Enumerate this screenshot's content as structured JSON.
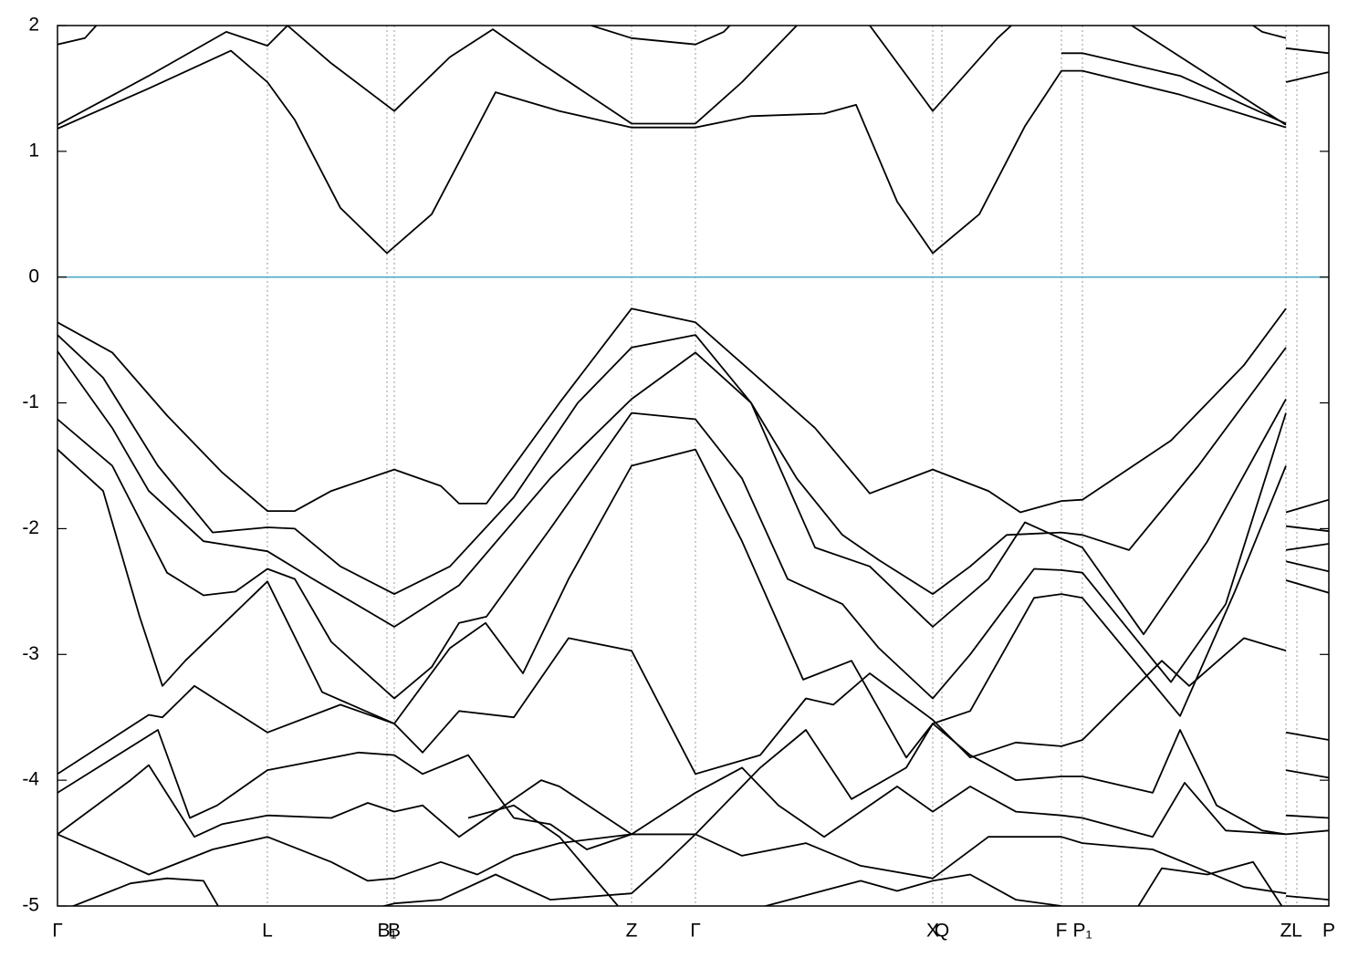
{
  "chart_data": {
    "type": "line",
    "xlim": [
      0,
      13.93
    ],
    "ylim": [
      -5,
      2
    ],
    "yticks": [
      -5,
      -4,
      -3,
      -2,
      -1,
      0,
      1,
      2
    ],
    "xticks": [
      {
        "value": 0,
        "label": "Γ"
      },
      {
        "value": 2.3,
        "label": "L"
      },
      {
        "value": 3.61,
        "label": "B₁"
      },
      {
        "value": 3.69,
        "label": "B"
      },
      {
        "value": 6.29,
        "label": "Z"
      },
      {
        "value": 6.99,
        "label": "Γ"
      },
      {
        "value": 9.59,
        "label": "X"
      },
      {
        "value": 9.69,
        "label": "Q"
      },
      {
        "value": 11.0,
        "label": "F"
      },
      {
        "value": 11.23,
        "label": "P₁"
      },
      {
        "value": 13.46,
        "label": "Z"
      },
      {
        "value": 13.58,
        "label": "L"
      },
      {
        "value": 13.93,
        "label": "P"
      }
    ],
    "xgrid": true,
    "hline": {
      "value": 0,
      "color": "#4eaac6"
    },
    "series": [
      {
        "color": "#000000",
        "x": [
          0,
          1.0,
          1.9,
          2.3,
          2.6,
          3.1,
          3.61,
          4.1,
          4.8,
          5.5,
          6.29,
          6.99,
          7.6,
          8.4,
          8.75,
          9.2,
          9.59,
          10.1,
          10.6,
          11.0,
          11.23,
          12.3,
          13.46
        ],
        "values": [
          1.18,
          1.5,
          1.8,
          1.55,
          1.25,
          0.55,
          0.19,
          0.5,
          1.47,
          1.32,
          1.19,
          1.19,
          1.28,
          1.3,
          1.37,
          0.6,
          0.19,
          0.5,
          1.2,
          1.64,
          1.64,
          1.45,
          1.19
        ]
      },
      {
        "color": "#000000",
        "x": [
          0,
          1.0,
          1.85,
          2.3,
          2.52,
          3.0,
          3.69,
          4.3,
          4.77,
          5.3,
          6.29,
          6.99,
          7.5,
          8.1,
          8.5,
          8.9,
          9.59,
          10.3,
          10.6,
          11.0,
          11.5,
          11.77,
          13.46
        ],
        "values": [
          1.21,
          1.6,
          1.95,
          1.84,
          2.0,
          1.7,
          1.32,
          1.75,
          1.97,
          1.7,
          1.22,
          1.22,
          1.55,
          2.0,
          2.2,
          2.0,
          1.32,
          1.9,
          2.1,
          2.2,
          2.15,
          2.0,
          1.21
        ]
      },
      {
        "color": "#000000",
        "x": [
          11.0,
          11.23,
          12.3,
          13.46
        ],
        "values": [
          1.78,
          1.78,
          1.6,
          1.22
        ]
      },
      {
        "color": "#000000",
        "x": [
          0,
          0.3,
          0.55,
          3.0,
          5.6,
          5.85,
          6.29,
          6.99,
          7.3,
          7.5,
          10,
          12.9,
          13.2,
          13.46
        ],
        "values": [
          1.85,
          1.9,
          2.1,
          null,
          2.1,
          2.0,
          1.9,
          1.85,
          1.95,
          2.1,
          null,
          2.1,
          1.95,
          1.9
        ]
      },
      {
        "color": "#000000",
        "x": [
          0,
          0.6,
          1.2,
          1.8,
          2.3,
          2.6,
          3.0,
          3.69,
          4.2,
          4.4,
          4.7,
          5.5,
          6.29,
          6.99,
          7.6,
          8.3,
          8.9,
          9.59,
          10.2,
          10.55,
          11.0,
          11.23,
          12.2,
          13.0,
          13.46
        ],
        "values": [
          -0.36,
          -0.6,
          -1.1,
          -1.55,
          -1.86,
          -1.86,
          -1.7,
          -1.53,
          -1.66,
          -1.8,
          -1.8,
          -1.0,
          -0.25,
          -0.36,
          -0.75,
          -1.2,
          -1.72,
          -1.53,
          -1.7,
          -1.87,
          -1.78,
          -1.77,
          -1.3,
          -0.7,
          -0.25
        ]
      },
      {
        "color": "#000000",
        "x": [
          0,
          0.5,
          1.1,
          1.7,
          2.3,
          2.6,
          3.1,
          3.69,
          4.3,
          5.0,
          5.7,
          6.29,
          6.99,
          7.6,
          8.1,
          8.6,
          9.0,
          9.59,
          10.0,
          10.4,
          11.0,
          11.23,
          11.74,
          12.5,
          13.46
        ],
        "values": [
          -0.46,
          -0.8,
          -1.5,
          -2.03,
          -1.99,
          -2.0,
          -2.3,
          -2.52,
          -2.3,
          -1.75,
          -1.0,
          -0.56,
          -0.46,
          -1.0,
          -1.6,
          -2.05,
          -2.25,
          -2.52,
          -2.3,
          -2.05,
          -2.03,
          -2.05,
          -2.17,
          -1.5,
          -0.56
        ]
      },
      {
        "color": "#000000",
        "x": [
          0,
          0.6,
          1.0,
          1.6,
          2.3,
          2.8,
          3.69,
          4.4,
          5.4,
          6.29,
          6.99,
          7.6,
          8.3,
          8.9,
          9.59,
          10.2,
          10.6,
          11.0,
          11.23,
          11.9,
          12.6,
          13.46
        ],
        "values": [
          -0.59,
          -1.2,
          -1.7,
          -2.1,
          -2.18,
          -2.4,
          -2.78,
          -2.45,
          -1.6,
          -0.97,
          -0.6,
          -1.0,
          -2.15,
          -2.3,
          -2.78,
          -2.4,
          -1.95,
          -2.08,
          -2.15,
          -2.84,
          -2.1,
          -0.97
        ]
      },
      {
        "color": "#000000",
        "x": [
          0,
          0.6,
          1.2,
          1.6,
          1.95,
          2.3,
          2.6,
          3.0,
          3.69,
          4.1,
          4.4,
          4.7,
          5.4,
          6.29,
          6.99,
          7.5,
          8.0,
          8.6,
          9.0,
          9.59,
          10.0,
          10.7,
          11.0,
          11.23,
          12.2,
          12.8,
          13.46
        ],
        "values": [
          -1.13,
          -1.5,
          -2.35,
          -2.53,
          -2.5,
          -2.32,
          -2.4,
          -2.9,
          -3.35,
          -3.1,
          -2.75,
          -2.7,
          -2.0,
          -1.08,
          -1.13,
          -1.6,
          -2.4,
          -2.6,
          -2.95,
          -3.35,
          -3.0,
          -2.32,
          -2.33,
          -2.35,
          -3.22,
          -2.6,
          -1.08
        ]
      },
      {
        "color": "#000000",
        "x": [
          0,
          0.5,
          0.9,
          1.15,
          1.4,
          2.3,
          2.9,
          3.69,
          4.3,
          4.69,
          5.1,
          5.6,
          6.29,
          6.99,
          7.5,
          8.17,
          8.7,
          9.3,
          9.59,
          10.0,
          10.7,
          11.0,
          11.23,
          12.3,
          12.9,
          13.46
        ],
        "values": [
          -1.37,
          -1.7,
          -2.7,
          -3.25,
          -3.05,
          -2.42,
          -3.3,
          -3.55,
          -2.95,
          -2.75,
          -3.15,
          -2.4,
          -1.5,
          -1.37,
          -2.1,
          -3.2,
          -3.05,
          -3.82,
          -3.55,
          -3.45,
          -2.55,
          -2.52,
          -2.55,
          -3.49,
          -2.5,
          -1.5
        ]
      },
      {
        "color": "#000000",
        "x": [
          0,
          1.0,
          1.15,
          1.5,
          2.3,
          3.1,
          3.69,
          4.0,
          4.4,
          5.0,
          5.6,
          6.29,
          6.99,
          7.7,
          8.2,
          8.5,
          8.9,
          9.59,
          10.0,
          10.5,
          11.0,
          11.23,
          12.1,
          12.4,
          13.0,
          13.46
        ],
        "values": [
          -3.95,
          -3.48,
          -3.5,
          -3.25,
          -3.62,
          -3.4,
          -3.55,
          -3.78,
          -3.45,
          -3.5,
          -2.87,
          -2.97,
          -3.95,
          -3.8,
          -3.35,
          -3.4,
          -3.15,
          -3.52,
          -3.82,
          -3.7,
          -3.73,
          -3.68,
          -3.05,
          -3.25,
          -2.87,
          -2.97
        ]
      },
      {
        "color": "#000000",
        "x": [
          0,
          1.1,
          1.45,
          1.75,
          2.3,
          2.8,
          3.3,
          3.69,
          4.0,
          4.5,
          5.0,
          5.4,
          5.8,
          6.29,
          6.99,
          7.7,
          8.2,
          8.7,
          9.3,
          9.59,
          10.0,
          10.5,
          11.0,
          11.23,
          12.0,
          12.3,
          12.7,
          13.2,
          13.46
        ],
        "values": [
          -4.1,
          -3.6,
          -4.3,
          -4.2,
          -3.92,
          -3.85,
          -3.78,
          -3.8,
          -3.95,
          -3.8,
          -4.3,
          -4.35,
          -4.55,
          -4.43,
          -4.43,
          -3.9,
          -3.6,
          -4.15,
          -3.9,
          -3.55,
          -3.8,
          -4.0,
          -3.97,
          -3.97,
          -4.1,
          -3.6,
          -4.2,
          -4.4,
          -4.43
        ]
      },
      {
        "color": "#000000",
        "x": [
          0,
          0.8,
          1.0,
          1.5,
          1.8,
          2.3,
          3.0,
          3.4,
          3.69,
          4.0,
          4.4,
          4.8,
          5.3,
          5.5,
          6.29,
          6.99,
          7.5,
          7.9,
          8.4,
          9.2,
          9.59,
          10.0,
          10.5,
          11.0,
          11.23,
          12.0,
          12.35,
          12.8,
          13.46
        ],
        "values": [
          -4.43,
          -4.0,
          -3.88,
          -4.45,
          -4.35,
          -4.28,
          -4.3,
          -4.18,
          -4.25,
          -4.2,
          -4.45,
          -4.25,
          -4.0,
          -4.05,
          -4.43,
          -4.1,
          -3.9,
          -4.2,
          -4.45,
          -4.05,
          -4.25,
          -4.05,
          -4.25,
          -4.28,
          -4.3,
          -4.45,
          -4.02,
          -4.4,
          -4.43
        ]
      },
      {
        "color": "#000000",
        "x": [
          0,
          0.7,
          1.0,
          1.7,
          2.3,
          3.0,
          3.4,
          3.69,
          4.2,
          4.6,
          5.0,
          5.5,
          6.29,
          6.99,
          7.5,
          8.2,
          8.8,
          9.59,
          10.2,
          11.0,
          11.23,
          12.0,
          12.5,
          13.0,
          13.46
        ],
        "values": [
          -4.43,
          -4.65,
          -4.75,
          -4.55,
          -4.45,
          -4.65,
          -4.8,
          -4.78,
          -4.65,
          -4.75,
          -4.6,
          -4.5,
          -4.43,
          -4.43,
          -4.6,
          -4.5,
          -4.68,
          -4.78,
          -4.45,
          -4.45,
          -4.5,
          -4.55,
          -4.7,
          -4.85,
          -4.9
        ]
      },
      {
        "color": "#000000",
        "x": [
          0,
          0.8,
          1.2,
          1.6,
          1.8
        ],
        "values": [
          -5.05,
          -4.82,
          -4.78,
          -4.8,
          -5.05
        ]
      },
      {
        "color": "#000000",
        "x": [
          3.3,
          3.69,
          4.2,
          4.8,
          5.4,
          6.29,
          6.6,
          6.99
        ],
        "values": [
          -5.05,
          -4.98,
          -4.95,
          -4.75,
          -4.95,
          -4.9,
          -4.7,
          -4.43
        ]
      },
      {
        "color": "#000000",
        "x": [
          4.5,
          5.0,
          5.5,
          6.2
        ],
        "values": [
          -4.3,
          -4.2,
          -4.45,
          -5.05
        ]
      },
      {
        "color": "#000000",
        "x": [
          7.5,
          8.8,
          9.2,
          9.59,
          10.0,
          10.5,
          11.0
        ],
        "values": [
          -5.05,
          -4.8,
          -4.88,
          -4.8,
          -4.75,
          -4.95,
          -5.0
        ]
      },
      {
        "color": "#000000",
        "x": [
          11.8,
          12.1,
          12.6,
          13.1,
          13.46
        ],
        "values": [
          -5.05,
          -4.7,
          -4.75,
          -4.65,
          -5.05
        ]
      },
      {
        "color": "#000000",
        "x": [
          13.46,
          13.93
        ],
        "values": [
          1.55,
          1.63
        ]
      },
      {
        "color": "#000000",
        "x": [
          13.46,
          13.93
        ],
        "values": [
          1.82,
          1.78
        ]
      },
      {
        "color": "#000000",
        "x": [
          13.46,
          13.93
        ],
        "values": [
          -1.87,
          -1.77
        ]
      },
      {
        "color": "#000000",
        "x": [
          13.46,
          13.93
        ],
        "values": [
          -1.98,
          -2.02
        ]
      },
      {
        "color": "#000000",
        "x": [
          13.46,
          13.93
        ],
        "values": [
          -2.17,
          -2.12
        ]
      },
      {
        "color": "#000000",
        "x": [
          13.46,
          13.93
        ],
        "values": [
          -2.26,
          -2.34
        ]
      },
      {
        "color": "#000000",
        "x": [
          13.46,
          13.93
        ],
        "values": [
          -2.41,
          -2.51
        ]
      },
      {
        "color": "#000000",
        "x": [
          13.46,
          13.93
        ],
        "values": [
          -3.62,
          -3.68
        ]
      },
      {
        "color": "#000000",
        "x": [
          13.46,
          13.93
        ],
        "values": [
          -3.92,
          -3.98
        ]
      },
      {
        "color": "#000000",
        "x": [
          13.46,
          13.93
        ],
        "values": [
          -4.28,
          -4.3
        ]
      },
      {
        "color": "#000000",
        "x": [
          13.46,
          13.93
        ],
        "values": [
          -4.43,
          -4.4
        ]
      },
      {
        "color": "#000000",
        "x": [
          13.46,
          13.93
        ],
        "values": [
          -4.92,
          -4.95
        ]
      }
    ]
  }
}
